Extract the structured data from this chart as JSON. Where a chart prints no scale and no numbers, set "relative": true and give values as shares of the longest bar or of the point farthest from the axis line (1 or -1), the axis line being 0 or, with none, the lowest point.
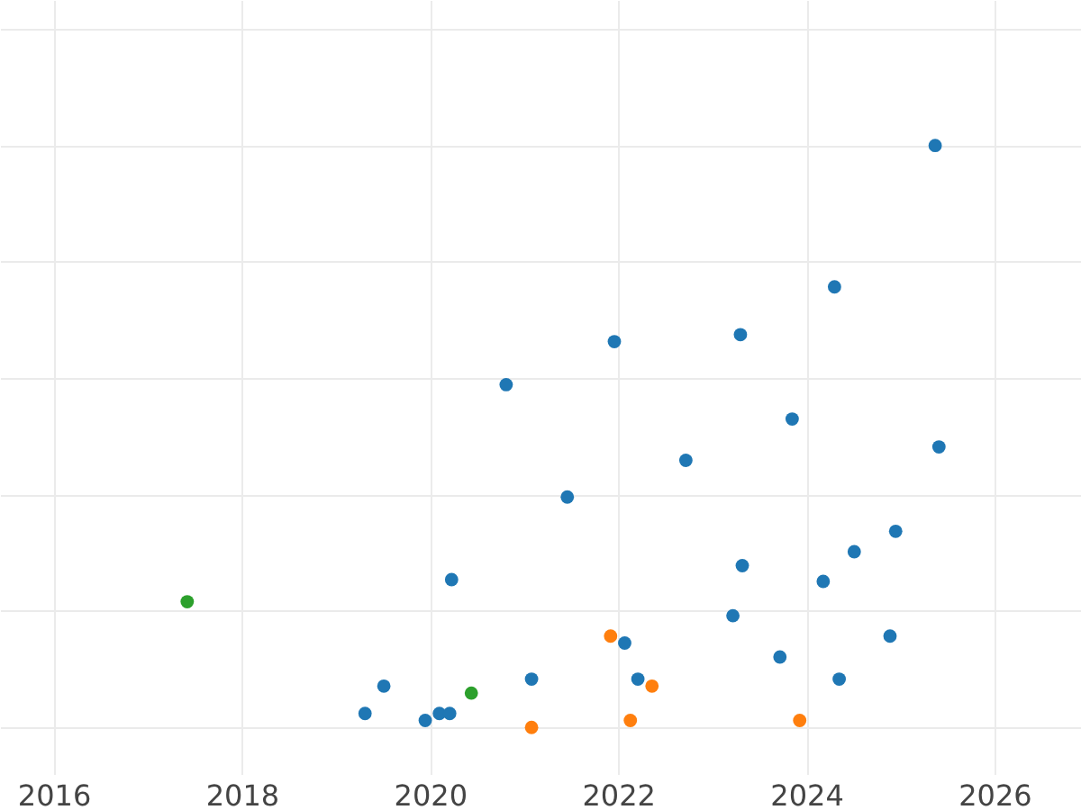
{
  "chart_data": {
    "type": "scatter",
    "relative": true,
    "grid": true,
    "xlim": [
      2015.43,
      2026.92
    ],
    "xticks": [
      2016,
      2018,
      2020,
      2022,
      2024,
      2026
    ],
    "series": [
      {
        "color": "#1f77b4",
        "x": [
          2025.37,
          2024.3,
          2023.3,
          2021.96,
          2020.81,
          2023.85,
          2022.72,
          2025.41,
          2021.46,
          2024.95,
          2024.51,
          2023.32,
          2020.23,
          2024.18,
          2023.22,
          2022.07,
          2024.89,
          2023.72,
          2019.51,
          2021.08,
          2022.21,
          2024.35,
          2019.31,
          2019.95,
          2020.1,
          2020.21
        ],
        "values": [
          1.0,
          0.757,
          0.675,
          0.663,
          0.589,
          0.53,
          0.459,
          0.482,
          0.396,
          0.337,
          0.302,
          0.278,
          0.254,
          0.251,
          0.192,
          0.145,
          0.157,
          0.121,
          0.071,
          0.083,
          0.083,
          0.083,
          0.024,
          0.012,
          0.024,
          0.024
        ]
      },
      {
        "color": "#ff7f0e",
        "x": [
          2021.92,
          2022.36,
          2022.13,
          2021.08,
          2023.93
        ],
        "values": [
          0.157,
          0.071,
          0.012,
          0.0,
          0.012
        ]
      },
      {
        "color": "#2ca02c",
        "x": [
          2017.42,
          2020.44
        ],
        "values": [
          0.216,
          0.059
        ]
      }
    ]
  }
}
